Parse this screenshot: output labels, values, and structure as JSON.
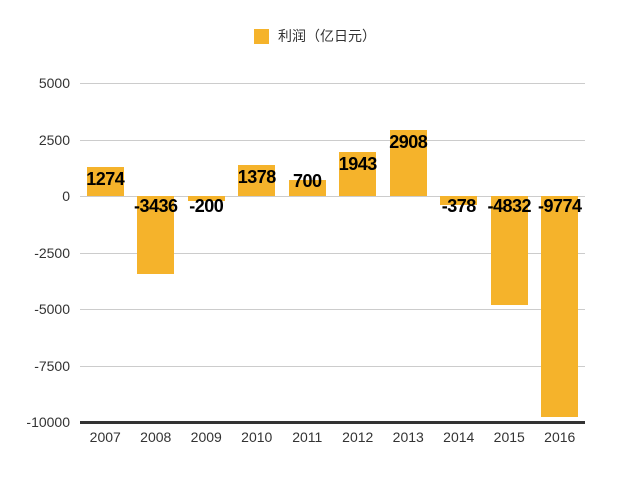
{
  "legend": {
    "label": "利润（亿日元）",
    "swatch_color": "#F5B32B"
  },
  "chart_data": {
    "type": "bar",
    "title": "",
    "xlabel": "",
    "ylabel": "",
    "categories": [
      "2007",
      "2008",
      "2009",
      "2010",
      "2011",
      "2012",
      "2013",
      "2014",
      "2015",
      "2016"
    ],
    "series": [
      {
        "name": "利润（亿日元）",
        "values": [
          1274,
          -3436,
          -200,
          1378,
          700,
          1943,
          2908,
          -378,
          -4832,
          -9774
        ]
      }
    ],
    "value_labels": [
      "1274",
      "-3436",
      "-200",
      "1378",
      "700",
      "1943",
      "2908",
      "-378",
      "-4832",
      "-9774"
    ],
    "ylim": [
      -10000,
      5000
    ],
    "yticks": [
      5000,
      2500,
      0,
      -2500,
      -5000,
      -7500,
      -10000
    ],
    "grid": true,
    "legend_position": "top"
  },
  "colors": {
    "bar": "#F5B32B",
    "gridline": "#cccccc",
    "bottom_axis": "#333333",
    "tick_text": "#333333",
    "value_label_text": "#000000"
  }
}
